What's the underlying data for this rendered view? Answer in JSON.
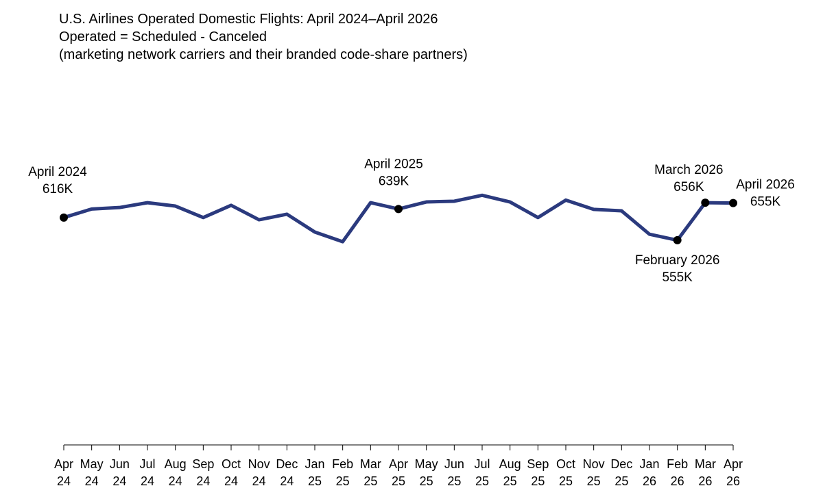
{
  "chart_data": {
    "type": "line",
    "title": "U.S. Airlines Operated Domestic Flights: April 2024–April 2026",
    "subtitle": [
      "Operated = Scheduled - Canceled",
      "(marketing network carriers and their branded code-share partners)"
    ],
    "categories": [
      "Apr 24",
      "May 24",
      "Jun 24",
      "Jul 24",
      "Aug 24",
      "Sep 24",
      "Oct 24",
      "Nov 24",
      "Dec 24",
      "Jan 25",
      "Feb 25",
      "Mar 25",
      "Apr 25",
      "May 25",
      "Jun 25",
      "Jul 25",
      "Aug 25",
      "Sep 25",
      "Oct 25",
      "Nov 25",
      "Dec 25",
      "Jan 26",
      "Feb 26",
      "Mar 26",
      "Apr 26"
    ],
    "series": [
      {
        "name": "Operated flights",
        "color": "#2b3a7e",
        "values": [
          616,
          639,
          643,
          656,
          647,
          616,
          649,
          610,
          625,
          577,
          551,
          656,
          639,
          658,
          660,
          676,
          658,
          616,
          663,
          638,
          634,
          571,
          555,
          656,
          655
        ],
        "value_labels": [
          "616K",
          null,
          null,
          null,
          null,
          null,
          null,
          null,
          null,
          null,
          null,
          null,
          "639K",
          null,
          null,
          null,
          null,
          null,
          null,
          null,
          null,
          null,
          "555K",
          "656K",
          "655K"
        ],
        "point_labels": [
          "April 2024",
          null,
          null,
          null,
          null,
          null,
          null,
          null,
          null,
          null,
          null,
          null,
          "April 2025",
          null,
          null,
          null,
          null,
          null,
          null,
          null,
          null,
          null,
          "February 2026",
          "March 2026",
          "April 2026"
        ]
      }
    ],
    "ylim": [
      400,
      800
    ]
  }
}
